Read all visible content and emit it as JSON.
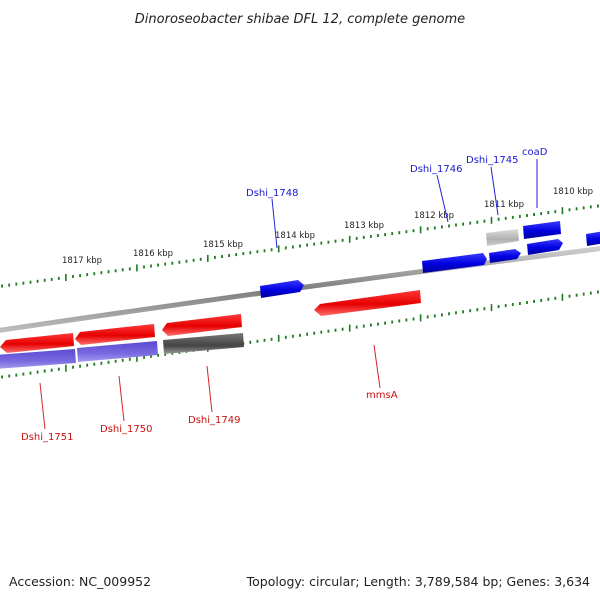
{
  "title": "Dinoroseobacter shibae DFL 12, complete genome",
  "footer": {
    "accession": "Accession: NC_009952",
    "stats": "Topology: circular; Length: 3,789,584 bp; Genes: 3,634"
  },
  "colors": {
    "forward_gene": "#0000e6",
    "reverse_gene": "#e60000",
    "cds_purple": "#6a5ad6",
    "pseudo_gray": "#555555",
    "pseudo_light": "#b5b5b5",
    "tick": "#1e7a1e",
    "backbone": "#8c8c8c",
    "label_forward": "#0000cc",
    "label_reverse": "#cc0000"
  },
  "ruler_labels": [
    "1810 kbp",
    "1811 kbp",
    "1812 kbp",
    "1813 kbp",
    "1814 kbp",
    "1815 kbp",
    "1816 kbp",
    "1817 kbp"
  ],
  "gene_labels": {
    "forward": [
      "coaD",
      "Dshi_1745",
      "Dshi_1746",
      "Dshi_1748"
    ],
    "reverse": [
      "mmsA",
      "Dshi_1749",
      "Dshi_1750",
      "Dshi_1751"
    ]
  }
}
